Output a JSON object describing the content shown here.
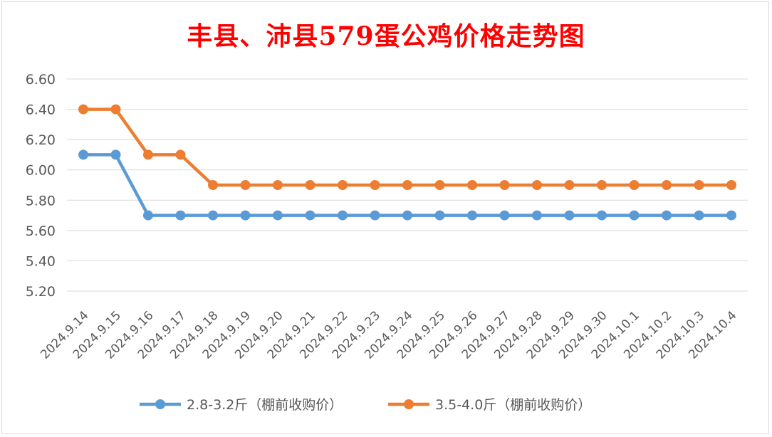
{
  "chart_data": {
    "type": "line",
    "title": "丰县、沛县579蛋公鸡价格走势图",
    "categories": [
      "2024.9.14",
      "2024.9.15",
      "2024.9.16",
      "2024.9.17",
      "2024.9.18",
      "2024.9.19",
      "2024.9.20",
      "2024.9.21",
      "2024.9.22",
      "2024.9.23",
      "2024.9.24",
      "2024.9.25",
      "2024.9.26",
      "2024.9.27",
      "2024.9.28",
      "2024.9.29",
      "2024.9.30",
      "2024.10.1",
      "2024.10.2",
      "2024.10.3",
      "2024.10.4"
    ],
    "y_ticks": [
      "5.20",
      "5.40",
      "5.60",
      "5.80",
      "6.00",
      "6.20",
      "6.40",
      "6.60"
    ],
    "ylim": [
      5.2,
      6.6
    ],
    "grid": true,
    "legend_position": "bottom",
    "series": [
      {
        "name": "2.8-3.2斤（棚前收购价）",
        "color": "#5b9bd5",
        "values": [
          6.1,
          6.1,
          5.7,
          5.7,
          5.7,
          5.7,
          5.7,
          5.7,
          5.7,
          5.7,
          5.7,
          5.7,
          5.7,
          5.7,
          5.7,
          5.7,
          5.7,
          5.7,
          5.7,
          5.7,
          5.7
        ]
      },
      {
        "name": "3.5-4.0斤（棚前收购价）",
        "color": "#ed7d31",
        "values": [
          6.4,
          6.4,
          6.1,
          6.1,
          5.9,
          5.9,
          5.9,
          5.9,
          5.9,
          5.9,
          5.9,
          5.9,
          5.9,
          5.9,
          5.9,
          5.9,
          5.9,
          5.9,
          5.9,
          5.9,
          5.9
        ]
      }
    ]
  }
}
